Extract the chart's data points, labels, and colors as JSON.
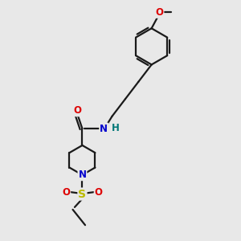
{
  "bg_color": "#e8e8e8",
  "bond_color": "#1a1a1a",
  "bond_lw": 1.6,
  "atom_colors": {
    "O": "#dd0000",
    "N": "#0000cc",
    "S": "#bbbb00",
    "H": "#007777",
    "C": "#1a1a1a"
  },
  "font_size": 8.5,
  "fig_w": 3.0,
  "fig_h": 3.0,
  "dpi": 100
}
